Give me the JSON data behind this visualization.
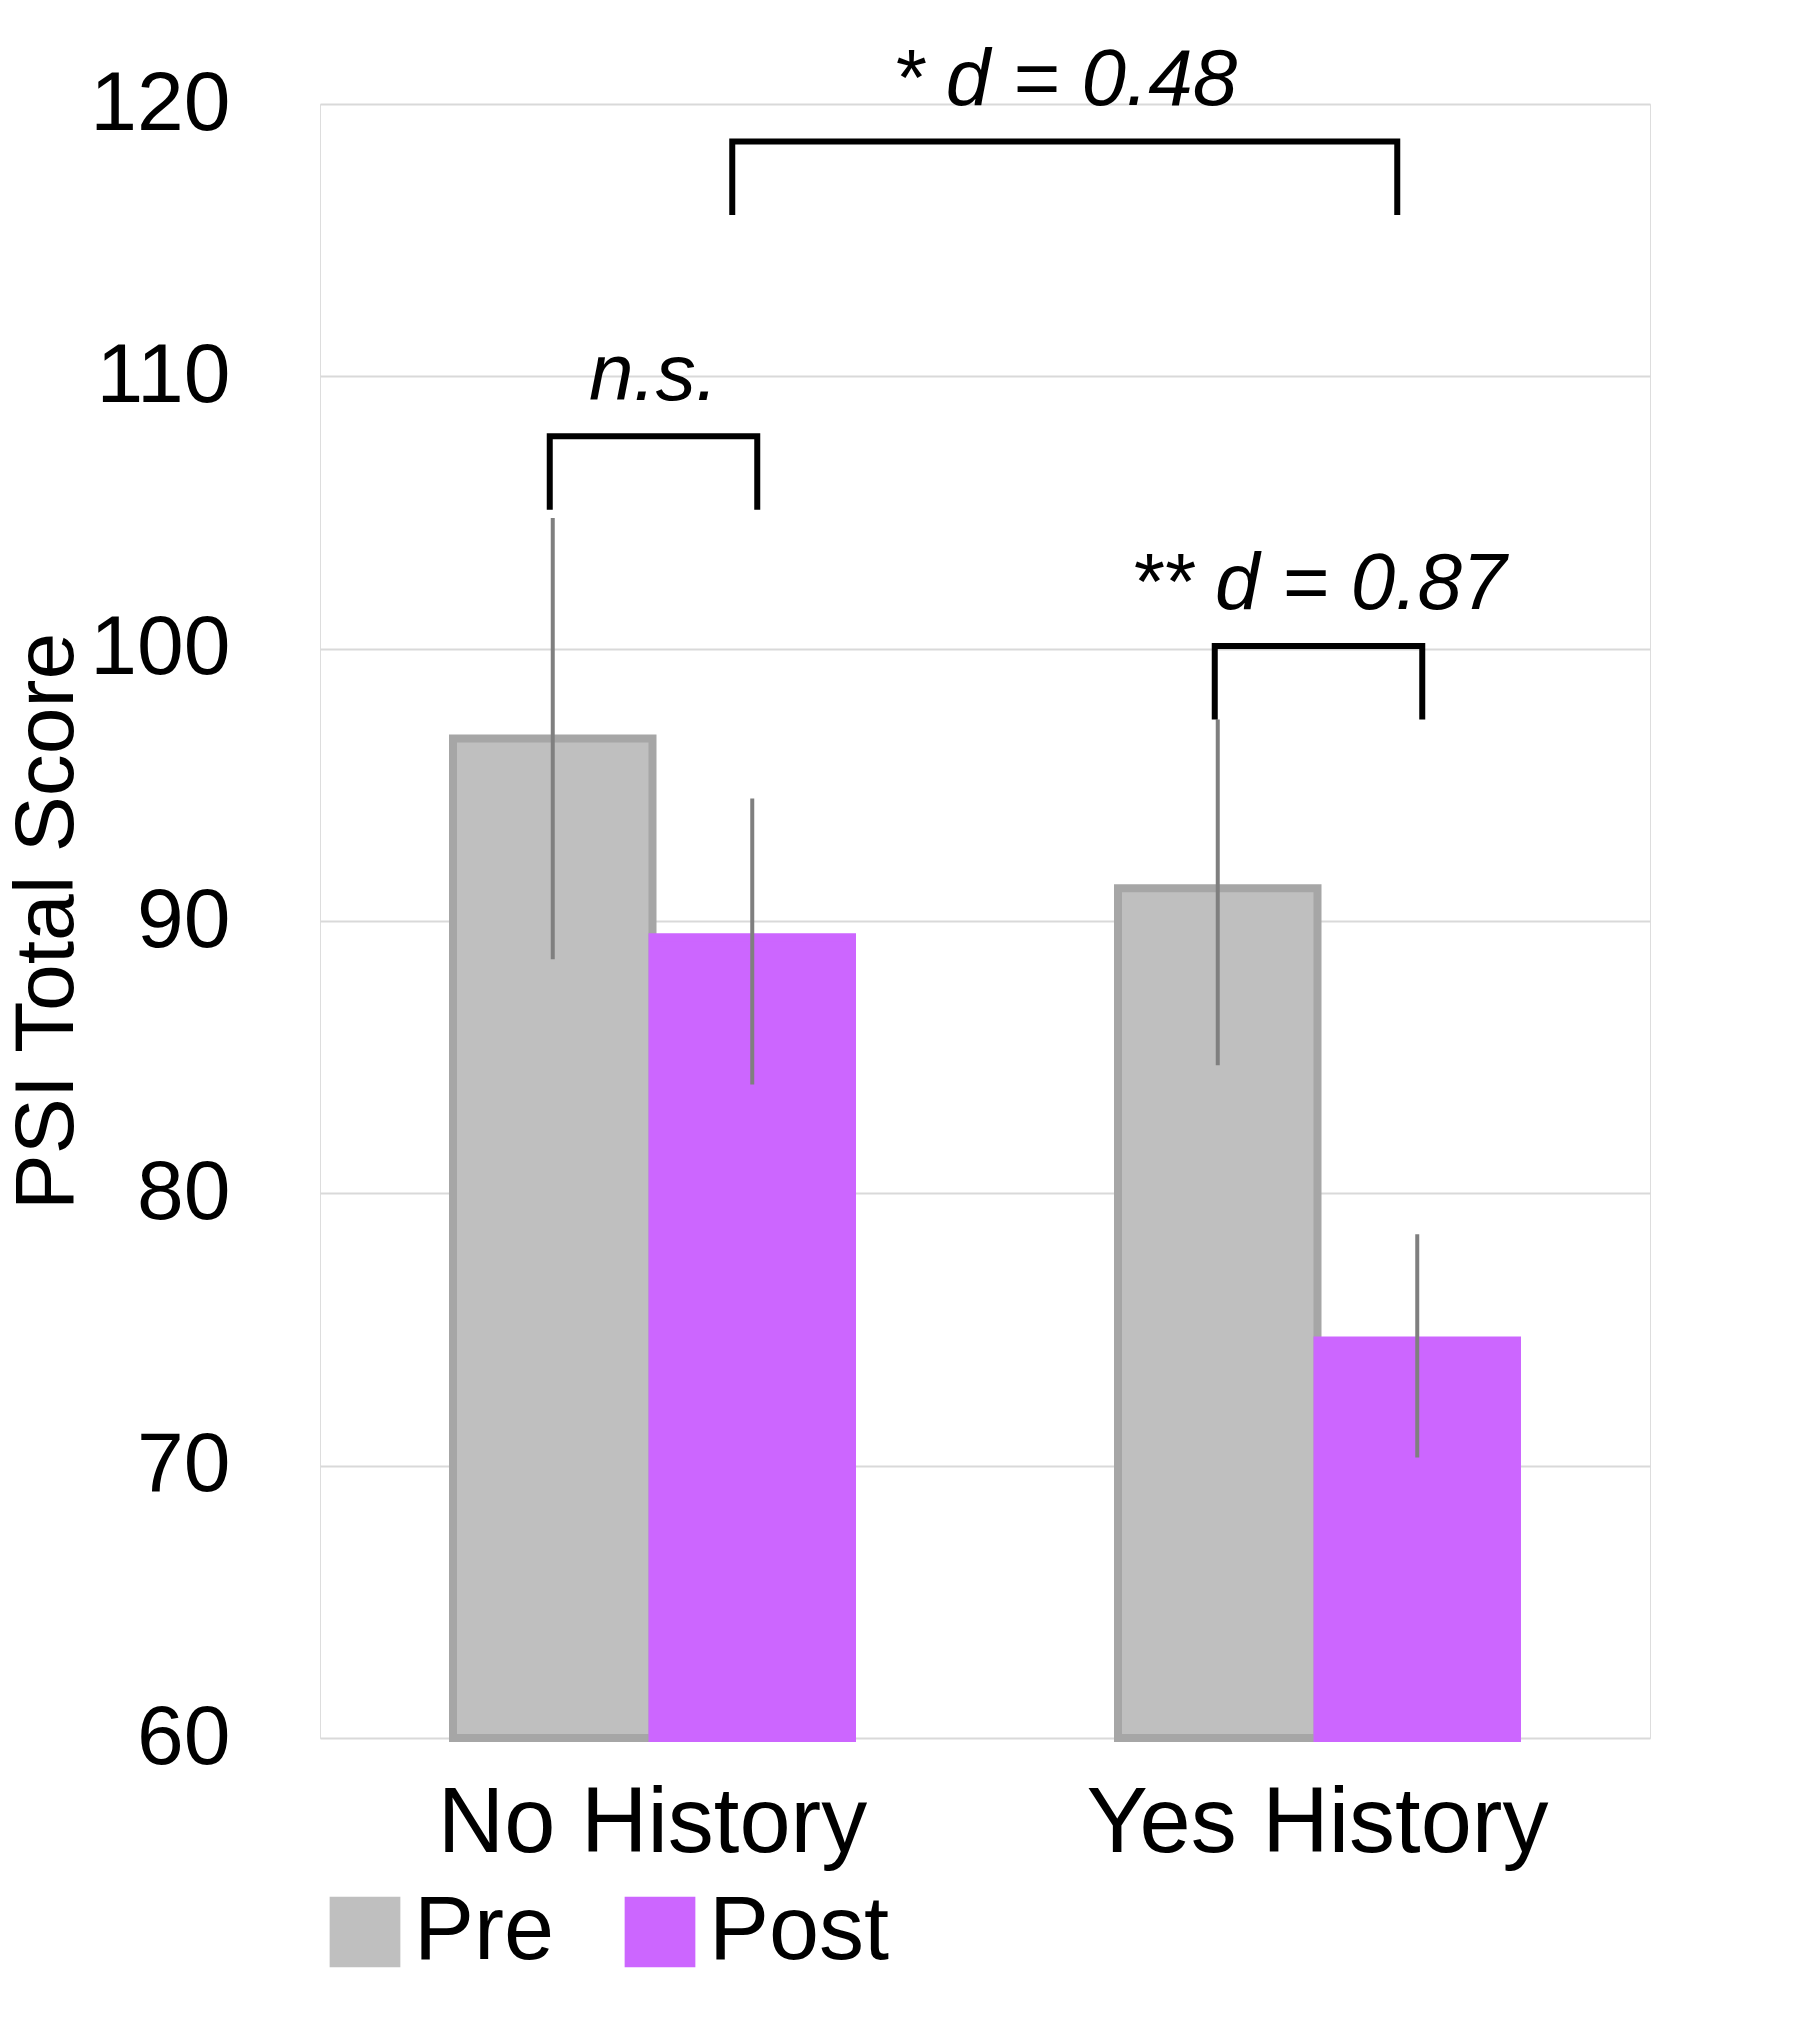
{
  "chart_data": {
    "type": "bar",
    "ylabel": "PSI Total Score",
    "categories": [
      "No History",
      "Yes History"
    ],
    "series": [
      {
        "name": "Pre",
        "color": "#bfbfbf",
        "values": [
          96.7,
          91.2
        ],
        "errors": [
          [
            88.6,
            104.8
          ],
          [
            84.7,
            97.4
          ]
        ]
      },
      {
        "name": "Post",
        "color": "#cc66ff",
        "values": [
          89.4,
          74.6
        ],
        "errors": [
          [
            84.0,
            94.5
          ],
          [
            70.3,
            78.5
          ]
        ]
      }
    ],
    "ylim": [
      60,
      120
    ],
    "yticks": [
      60,
      70,
      80,
      90,
      100,
      110,
      120
    ],
    "grid": "y",
    "legend": "bottom",
    "annotations": [
      "n.s.",
      "* d = 0.48",
      "** d = 0.87"
    ]
  }
}
